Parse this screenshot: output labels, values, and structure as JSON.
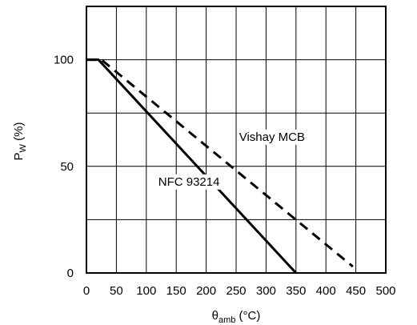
{
  "chart_data": {
    "type": "line",
    "title": "",
    "xlabel": {
      "main": "θ",
      "sub": "amb",
      "unit": " (°C)"
    },
    "ylabel": {
      "main": "P",
      "sub": "W",
      "unit": " (%)"
    },
    "xlim": [
      0,
      500
    ],
    "ylim": [
      0,
      125
    ],
    "xticks": [
      0,
      50,
      100,
      150,
      200,
      250,
      300,
      350,
      400,
      450,
      500
    ],
    "yticks": [
      0,
      50,
      100
    ],
    "x_gridlines": [
      0,
      50,
      100,
      150,
      200,
      250,
      300,
      350,
      400,
      450,
      500
    ],
    "y_gridlines": [
      0,
      25,
      50,
      75,
      100,
      125
    ],
    "grid": true,
    "legend": "none",
    "series": [
      {
        "name": "NFC 93214",
        "style": "solid",
        "color": "#000000",
        "x": [
          0,
          20,
          350
        ],
        "y": [
          100,
          100,
          0
        ]
      },
      {
        "name": "Vishay MCB",
        "style": "dashed",
        "color": "#000000",
        "x": [
          0,
          25,
          445
        ],
        "y": [
          100,
          100,
          3
        ]
      }
    ],
    "annotations": [
      {
        "text": "Vishay MCB",
        "x": 255,
        "y": 62
      },
      {
        "text": "NFC 93214",
        "x": 120,
        "y": 41
      }
    ]
  }
}
